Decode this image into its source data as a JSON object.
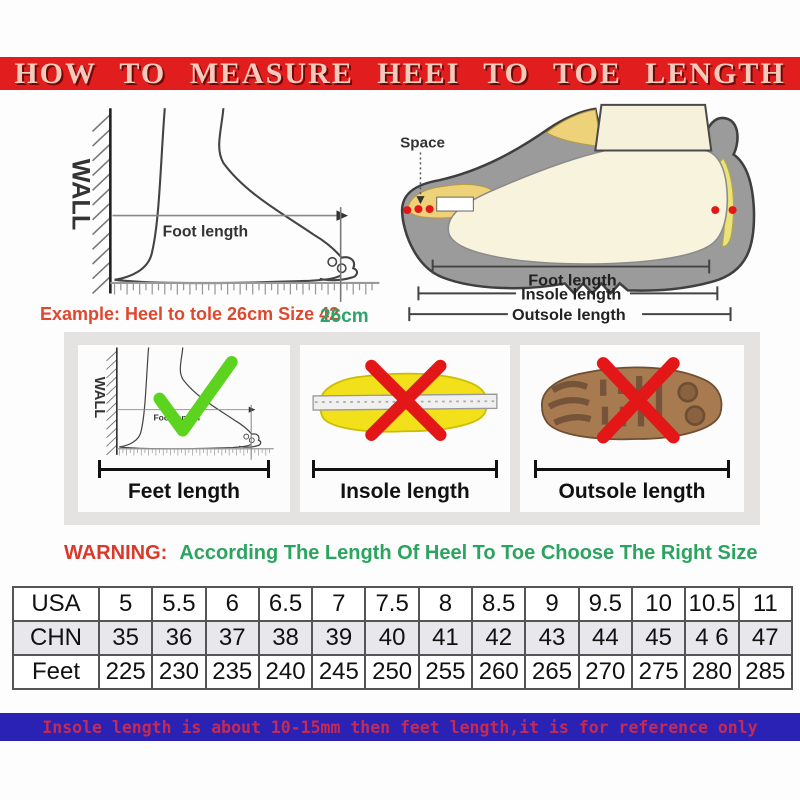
{
  "title": "HOW TO MEASURE HEEI TO TOE LENGTH",
  "measure": {
    "wall_label": "WALL",
    "foot_length_label": "Foot length",
    "example_text": "Example: Heel to tole 26cm Size 42",
    "ruler_value": "26cm",
    "space_label": "Space",
    "shoe_foot_length_label": "Foot length",
    "shoe_insole_length_label": "Insole length",
    "shoe_outsole_length_label": "Outsole length"
  },
  "panels": [
    {
      "label": "Feet length",
      "mark": "check",
      "wall_label": "WALL",
      "inner_label": "Foot length"
    },
    {
      "label": "Insole length",
      "mark": "cross"
    },
    {
      "label": "Outsole length",
      "mark": "cross"
    }
  ],
  "warning": {
    "prefix": "WARNING:",
    "text": "According The Length Of Heel To Toe Choose The Right Size"
  },
  "size_table": {
    "rows": [
      {
        "label": "USA",
        "values": [
          "5",
          "5.5",
          "6",
          "6.5",
          "7",
          "7.5",
          "8",
          "8.5",
          "9",
          "9.5",
          "10",
          "10.5",
          "11"
        ]
      },
      {
        "label": "CHN",
        "values": [
          "35",
          "36",
          "37",
          "38",
          "39",
          "40",
          "41",
          "42",
          "43",
          "44",
          "45",
          "4 6",
          "47"
        ]
      },
      {
        "label": "Feet",
        "values": [
          "225",
          "230",
          "235",
          "240",
          "245",
          "250",
          "255",
          "260",
          "265",
          "270",
          "275",
          "280",
          "285"
        ]
      }
    ]
  },
  "footer_note": "Insole length is about 10-15mm then feet length,it is for reference only",
  "colors": {
    "banner_red": "#e21d1d",
    "title_text": "#f2cbbd",
    "example_red": "#e0482e",
    "measure_green": "#2da46b",
    "warning_red": "#d8392a",
    "warning_green": "#2ba45f",
    "check_green": "#5cd41f",
    "cross_red": "#e31717",
    "insole_yellow": "#f2e01a",
    "outsole_brown": "#a87a50",
    "shoe_gray": "#9b9b9b",
    "footer_blue": "#2a22b5",
    "footer_text_red": "#c62a52",
    "chn_row_bg": "#e8e8ec"
  }
}
